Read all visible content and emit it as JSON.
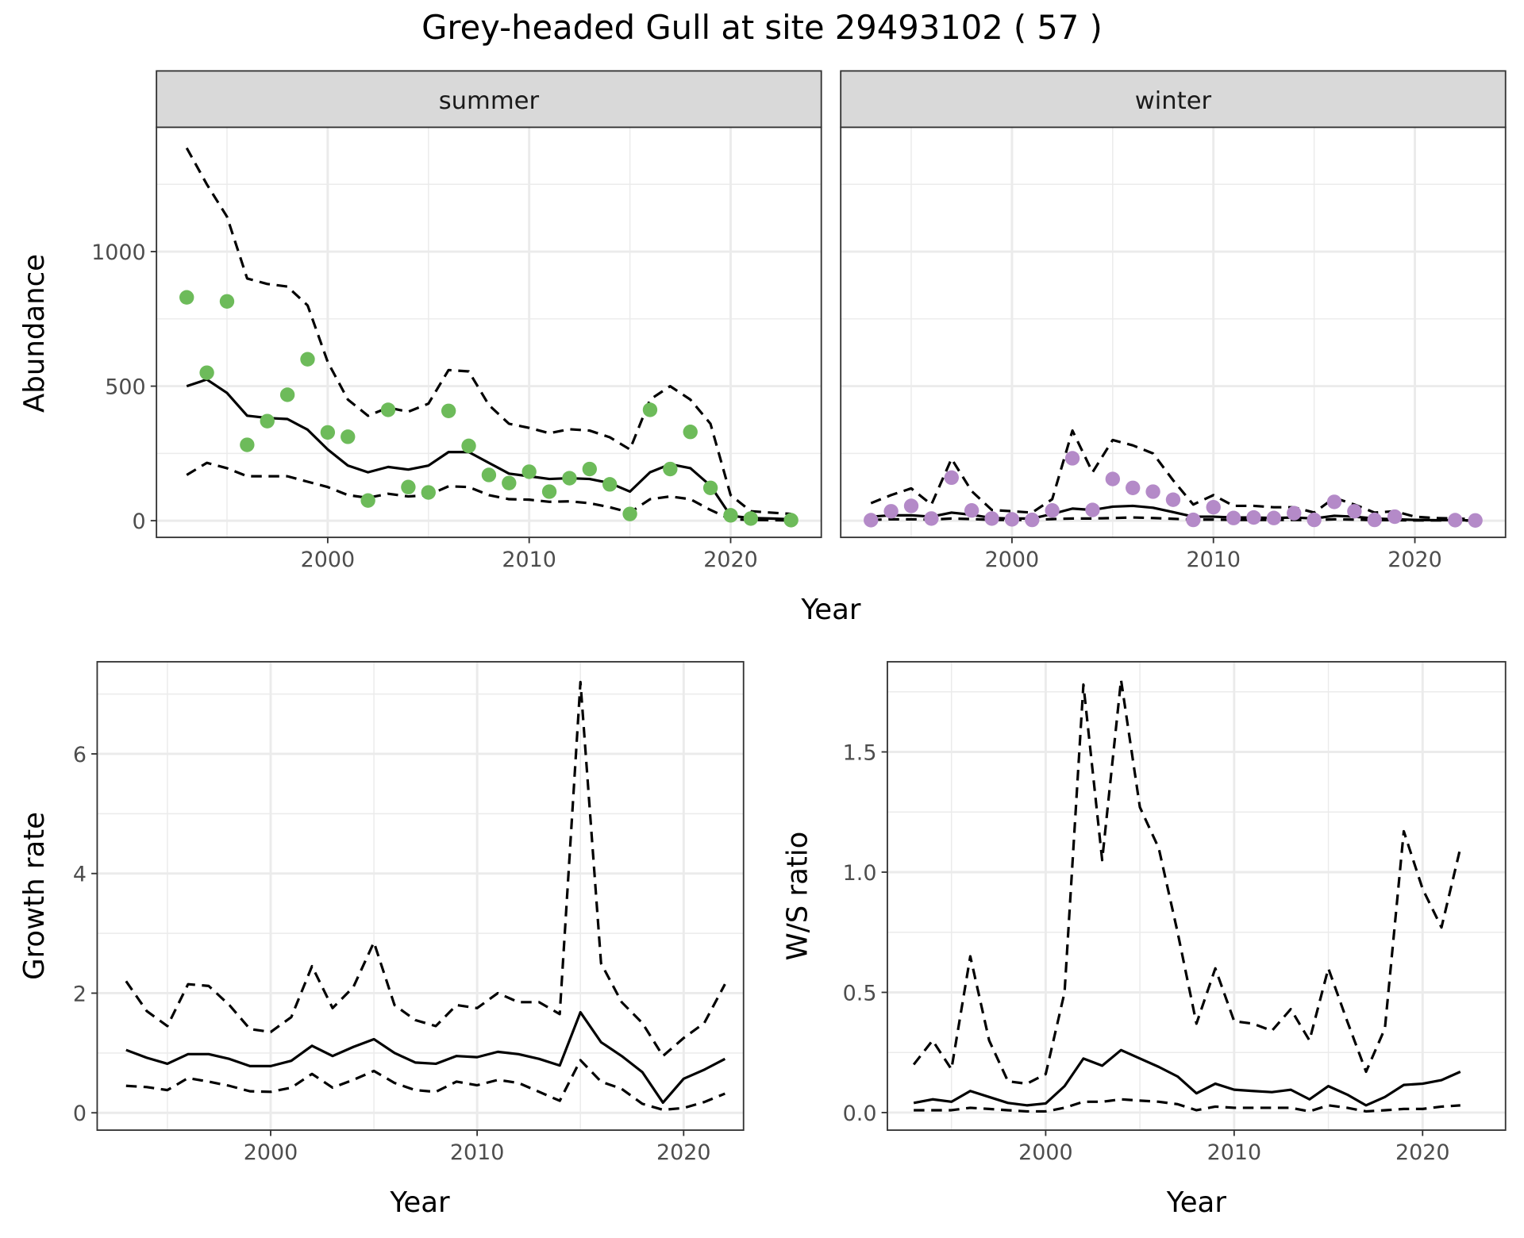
{
  "title": "Grey-headed Gull at site 29493102 ( 57 )",
  "colors": {
    "summer_points": "#6dbb5a",
    "winter_points": "#b48ac8",
    "lines": "#000000",
    "strip": "#d9d9d9",
    "grid": "#ebebeb"
  },
  "chart_data": [
    {
      "type": "scatter+line",
      "facet": "summer",
      "xlabel": "Year",
      "ylabel": "Abundance",
      "xticks": [
        "2000",
        "2010",
        "2020"
      ],
      "yticks": [
        "0",
        "500",
        "1000"
      ],
      "xlim": [
        1991.5,
        2024.5
      ],
      "ylim": [
        -62,
        1462
      ],
      "points": {
        "x": [
          1993,
          1994,
          1995,
          1996,
          1997,
          1998,
          1999,
          2000,
          2001,
          2002,
          2003,
          2004,
          2005,
          2006,
          2007,
          2008,
          2009,
          2010,
          2011,
          2012,
          2013,
          2014,
          2015,
          2016,
          2017,
          2018,
          2019,
          2020,
          2021,
          2023
        ],
        "y": [
          830,
          550,
          815,
          282,
          370,
          468,
          600,
          328,
          312,
          75,
          412,
          125,
          105,
          408,
          278,
          170,
          140,
          182,
          108,
          158,
          192,
          135,
          25,
          412,
          192,
          330,
          122,
          20,
          8,
          2
        ]
      },
      "years": [
        1993,
        1994,
        1995,
        1996,
        1997,
        1998,
        1999,
        2000,
        2001,
        2002,
        2003,
        2004,
        2005,
        2006,
        2007,
        2008,
        2009,
        2010,
        2011,
        2012,
        2013,
        2014,
        2015,
        2016,
        2017,
        2018,
        2019,
        2020,
        2021,
        2022,
        2023
      ],
      "mean": [
        500,
        525,
        475,
        390,
        382,
        378,
        338,
        265,
        205,
        180,
        200,
        190,
        205,
        255,
        255,
        215,
        175,
        165,
        155,
        158,
        155,
        140,
        108,
        180,
        210,
        195,
        130,
        18,
        10,
        8,
        5
      ],
      "upper": [
        1385,
        1250,
        1130,
        900,
        880,
        870,
        800,
        590,
        450,
        390,
        420,
        405,
        435,
        560,
        555,
        430,
        360,
        345,
        325,
        340,
        335,
        310,
        265,
        450,
        500,
        450,
        360,
        95,
        35,
        30,
        25
      ],
      "lower": [
        170,
        215,
        195,
        165,
        165,
        165,
        145,
        125,
        95,
        85,
        100,
        90,
        95,
        128,
        125,
        95,
        80,
        78,
        70,
        72,
        65,
        50,
        30,
        80,
        90,
        80,
        40,
        5,
        3,
        2,
        1
      ]
    },
    {
      "type": "scatter+line",
      "facet": "winter",
      "xlabel": "Year",
      "ylabel": "Abundance",
      "xticks": [
        "2000",
        "2010",
        "2020"
      ],
      "yticks": [
        "0",
        "500",
        "1000"
      ],
      "xlim": [
        1991.5,
        2024.5
      ],
      "ylim": [
        -62,
        1462
      ],
      "points": {
        "x": [
          1993,
          1994,
          1995,
          1996,
          1997,
          1998,
          1999,
          2000,
          2001,
          2002,
          2003,
          2004,
          2005,
          2006,
          2007,
          2008,
          2009,
          2010,
          2011,
          2012,
          2013,
          2014,
          2015,
          2016,
          2017,
          2018,
          2019,
          2022,
          2023
        ],
        "y": [
          2,
          35,
          55,
          8,
          160,
          38,
          8,
          5,
          3,
          38,
          232,
          40,
          155,
          122,
          108,
          78,
          3,
          50,
          10,
          12,
          10,
          28,
          3,
          70,
          35,
          3,
          15,
          2,
          1
        ]
      },
      "years": [
        1993,
        1994,
        1995,
        1996,
        1997,
        1998,
        1999,
        2000,
        2001,
        2002,
        2003,
        2004,
        2005,
        2006,
        2007,
        2008,
        2009,
        2010,
        2011,
        2012,
        2013,
        2014,
        2015,
        2016,
        2017,
        2018,
        2019,
        2020,
        2021,
        2022,
        2023
      ],
      "mean": [
        15,
        20,
        20,
        15,
        30,
        22,
        10,
        8,
        8,
        25,
        45,
        40,
        52,
        55,
        48,
        32,
        15,
        15,
        12,
        12,
        10,
        12,
        8,
        18,
        15,
        8,
        5,
        3,
        2,
        2,
        1
      ],
      "upper": [
        65,
        95,
        120,
        60,
        230,
        110,
        40,
        35,
        30,
        80,
        335,
        180,
        300,
        280,
        250,
        150,
        60,
        95,
        55,
        55,
        50,
        50,
        30,
        85,
        60,
        30,
        35,
        15,
        10,
        8,
        5
      ],
      "lower": [
        3,
        5,
        5,
        4,
        8,
        6,
        3,
        3,
        3,
        6,
        8,
        8,
        10,
        12,
        10,
        7,
        4,
        4,
        3,
        3,
        3,
        3,
        2,
        5,
        4,
        2,
        2,
        1,
        1,
        1,
        0
      ]
    },
    {
      "type": "line",
      "xlabel": "Year",
      "ylabel": "Growth rate",
      "xticks": [
        "2000",
        "2010",
        "2020"
      ],
      "yticks": [
        "0",
        "2",
        "4",
        "6"
      ],
      "xlim": [
        1991.6,
        2022.9
      ],
      "ylim": [
        -0.29,
        7.54
      ],
      "years": [
        1993,
        1994,
        1995,
        1996,
        1997,
        1998,
        1999,
        2000,
        2001,
        2002,
        2003,
        2004,
        2005,
        2006,
        2007,
        2008,
        2009,
        2010,
        2011,
        2012,
        2013,
        2014,
        2015,
        2016,
        2017,
        2018,
        2019,
        2020,
        2021,
        2022
      ],
      "mean": [
        1.05,
        0.92,
        0.82,
        0.98,
        0.98,
        0.9,
        0.78,
        0.78,
        0.87,
        1.12,
        0.95,
        1.1,
        1.23,
        1.0,
        0.84,
        0.82,
        0.95,
        0.93,
        1.02,
        0.98,
        0.9,
        0.79,
        1.68,
        1.18,
        0.95,
        0.68,
        0.17,
        0.57,
        0.72,
        0.9
      ],
      "upper": [
        2.2,
        1.7,
        1.45,
        2.15,
        2.12,
        1.8,
        1.4,
        1.35,
        1.6,
        2.45,
        1.75,
        2.1,
        2.85,
        1.8,
        1.55,
        1.45,
        1.8,
        1.75,
        2.0,
        1.85,
        1.85,
        1.65,
        7.2,
        2.5,
        1.85,
        1.5,
        0.95,
        1.25,
        1.5,
        2.15
      ],
      "lower": [
        0.45,
        0.43,
        0.38,
        0.58,
        0.52,
        0.45,
        0.36,
        0.35,
        0.42,
        0.65,
        0.42,
        0.55,
        0.7,
        0.5,
        0.38,
        0.35,
        0.52,
        0.46,
        0.55,
        0.5,
        0.35,
        0.2,
        0.88,
        0.52,
        0.4,
        0.15,
        0.05,
        0.08,
        0.18,
        0.32
      ]
    },
    {
      "type": "line",
      "xlabel": "Year",
      "ylabel": "W/S ratio",
      "xticks": [
        "2000",
        "2010",
        "2020"
      ],
      "yticks": [
        "0.0",
        "0.5",
        "1.0",
        "1.5"
      ],
      "xlim": [
        1991.6,
        2024.4
      ],
      "ylim": [
        -0.073,
        1.875
      ],
      "years": [
        1993,
        1994,
        1995,
        1996,
        1997,
        1998,
        1999,
        2000,
        2001,
        2002,
        2003,
        2004,
        2005,
        2006,
        2007,
        2008,
        2009,
        2010,
        2011,
        2012,
        2013,
        2014,
        2015,
        2016,
        2017,
        2018,
        2019,
        2020,
        2021,
        2022
      ],
      "mean": [
        0.04,
        0.055,
        0.045,
        0.09,
        0.065,
        0.04,
        0.03,
        0.038,
        0.11,
        0.225,
        0.195,
        0.26,
        0.225,
        0.19,
        0.15,
        0.08,
        0.12,
        0.095,
        0.09,
        0.085,
        0.095,
        0.055,
        0.11,
        0.075,
        0.03,
        0.065,
        0.115,
        0.12,
        0.135,
        0.17
      ],
      "upper": [
        0.2,
        0.3,
        0.18,
        0.65,
        0.3,
        0.13,
        0.12,
        0.16,
        0.5,
        1.78,
        1.05,
        1.8,
        1.27,
        1.1,
        0.75,
        0.37,
        0.6,
        0.38,
        0.37,
        0.34,
        0.43,
        0.3,
        0.6,
        0.38,
        0.17,
        0.35,
        1.17,
        0.93,
        0.77,
        1.1
      ],
      "lower": [
        0.01,
        0.01,
        0.01,
        0.02,
        0.015,
        0.01,
        0.005,
        0.005,
        0.02,
        0.045,
        0.045,
        0.055,
        0.05,
        0.045,
        0.035,
        0.01,
        0.025,
        0.02,
        0.02,
        0.02,
        0.02,
        0.005,
        0.03,
        0.02,
        0.005,
        0.01,
        0.015,
        0.015,
        0.025,
        0.03
      ]
    }
  ]
}
